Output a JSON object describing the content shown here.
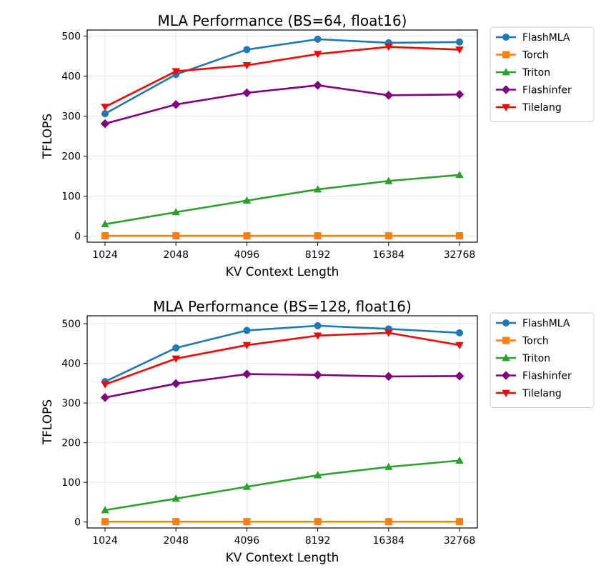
{
  "chart_data": [
    {
      "type": "line",
      "title": "MLA Performance (BS=64, float16)",
      "xlabel": "KV Context Length",
      "ylabel": "TFLOPS",
      "categories": [
        "1024",
        "2048",
        "4096",
        "8192",
        "16384",
        "32768"
      ],
      "ylim": [
        -15,
        515
      ],
      "yticks": [
        0,
        100,
        200,
        300,
        400,
        500
      ],
      "grid": true,
      "legend_position": "outside upper right",
      "series": [
        {
          "name": "FlashMLA",
          "color": "#1f77b4",
          "marker": "circle",
          "values": [
            306,
            404,
            466,
            492,
            483,
            485
          ]
        },
        {
          "name": "Torch",
          "color": "#ff7f0e",
          "marker": "square",
          "values": [
            1,
            1,
            1,
            1,
            1,
            1
          ]
        },
        {
          "name": "Triton",
          "color": "#2ca02c",
          "marker": "triangle-up",
          "values": [
            30,
            60,
            89,
            117,
            138,
            153
          ]
        },
        {
          "name": "Flashinfer",
          "color": "#800080",
          "marker": "diamond",
          "values": [
            281,
            329,
            358,
            377,
            352,
            354
          ]
        },
        {
          "name": "Tilelang",
          "color": "#ff0000",
          "marker": "triangle-down",
          "values": [
            323,
            412,
            427,
            455,
            473,
            466
          ]
        }
      ]
    },
    {
      "type": "line",
      "title": "MLA Performance (BS=128, float16)",
      "xlabel": "KV Context Length",
      "ylabel": "TFLOPS",
      "categories": [
        "1024",
        "2048",
        "4096",
        "8192",
        "16384",
        "32768"
      ],
      "ylim": [
        -15,
        520
      ],
      "yticks": [
        0,
        100,
        200,
        300,
        400,
        500
      ],
      "grid": true,
      "legend_position": "outside upper right",
      "series": [
        {
          "name": "FlashMLA",
          "color": "#1f77b4",
          "marker": "circle",
          "values": [
            354,
            439,
            483,
            495,
            487,
            477
          ]
        },
        {
          "name": "Torch",
          "color": "#ff7f0e",
          "marker": "square",
          "values": [
            1,
            1,
            1,
            1,
            1,
            1
          ]
        },
        {
          "name": "Triton",
          "color": "#2ca02c",
          "marker": "triangle-up",
          "values": [
            30,
            59,
            89,
            118,
            139,
            155
          ]
        },
        {
          "name": "Flashinfer",
          "color": "#800080",
          "marker": "diamond",
          "values": [
            314,
            349,
            373,
            371,
            367,
            368
          ]
        },
        {
          "name": "Tilelang",
          "color": "#ff0000",
          "marker": "triangle-down",
          "values": [
            347,
            412,
            446,
            470,
            477,
            446
          ]
        }
      ]
    }
  ]
}
